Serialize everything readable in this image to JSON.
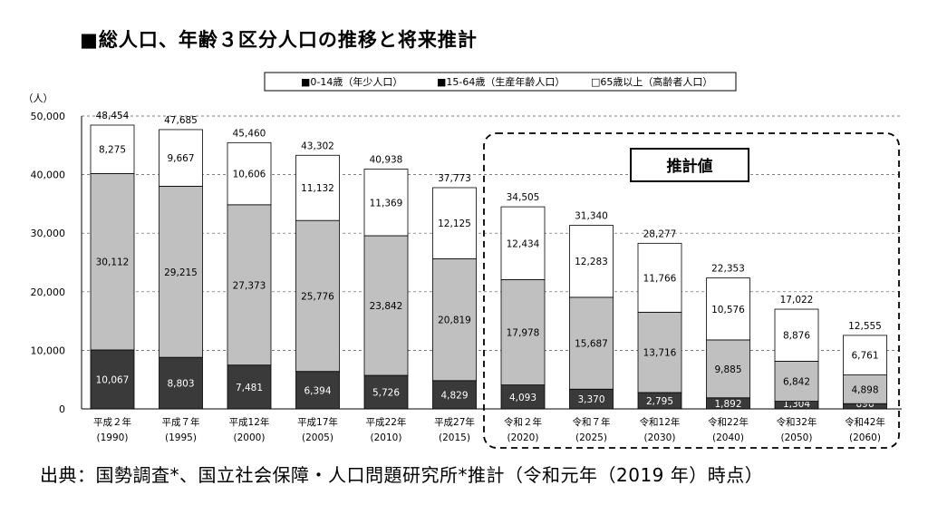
{
  "title": "■総人口、年齢３区分人口の推移と将来推計",
  "source": "出典：国勢調査*、国立社会保障・人口問題研究所*推計（令和元年（2019 年）時点）",
  "colors": {
    "young": "#3a3a3a",
    "working": "#c0c0c0",
    "elderly": "#ffffff",
    "border": "#000000"
  },
  "chart_data": {
    "type": "bar",
    "stacked": true,
    "ylabel": "（人）",
    "ylim": [
      0,
      50000
    ],
    "yticks": [
      "0",
      "10,000",
      "20,000",
      "30,000",
      "40,000",
      "50,000"
    ],
    "grid": "dashed horizontal",
    "legend": [
      "■0-14歳（年少人口）",
      "■15-64歳（生産年齢人口）",
      "□65歳以上（高齢者人口）"
    ],
    "legend_position": "top",
    "annotation": "推計値",
    "categories": [
      [
        "平成２年",
        "(1990)"
      ],
      [
        "平成７年",
        "(1995)"
      ],
      [
        "平成12年",
        "(2000)"
      ],
      [
        "平成17年",
        "(2005)"
      ],
      [
        "平成22年",
        "(2010)"
      ],
      [
        "平成27年",
        "(2015)"
      ],
      [
        "令和２年",
        "(2020)"
      ],
      [
        "令和７年",
        "(2025)"
      ],
      [
        "令和12年",
        "(2030)"
      ],
      [
        "令和22年",
        "(2040)"
      ],
      [
        "令和32年",
        "(2050)"
      ],
      [
        "令和42年",
        "(2060)"
      ]
    ],
    "series": [
      {
        "name": "0-14歳（年少人口）",
        "values": [
          10067,
          8803,
          7481,
          6394,
          5726,
          4829,
          4093,
          3370,
          2795,
          1892,
          1304,
          896
        ],
        "labels": [
          "10,067",
          "8,803",
          "7,481",
          "6,394",
          "5,726",
          "4,829",
          "4,093",
          "3,370",
          "2,795",
          "1,892",
          "1,304",
          "896"
        ]
      },
      {
        "name": "15-64歳（生産年齢人口）",
        "values": [
          30112,
          29215,
          27373,
          25776,
          23842,
          20819,
          17978,
          15687,
          13716,
          9885,
          6842,
          4898
        ],
        "labels": [
          "30,112",
          "29,215",
          "27,373",
          "25,776",
          "23,842",
          "20,819",
          "17,978",
          "15,687",
          "13,716",
          "9,885",
          "6,842",
          "4,898"
        ]
      },
      {
        "name": "65歳以上（高齢者人口）",
        "values": [
          8275,
          9667,
          10606,
          11132,
          11369,
          12125,
          12434,
          12283,
          11766,
          10576,
          8876,
          6761
        ],
        "labels": [
          "8,275",
          "9,667",
          "10,606",
          "11,132",
          "11,369",
          "12,125",
          "12,434",
          "12,283",
          "11,766",
          "10,576",
          "8,876",
          "6,761"
        ]
      }
    ],
    "totals": [
      48454,
      47685,
      45460,
      43302,
      40938,
      37773,
      34505,
      31340,
      28277,
      22353,
      17022,
      12555
    ],
    "total_labels": [
      "48,454",
      "47,685",
      "45,460",
      "43,302",
      "40,938",
      "37,773",
      "34,505",
      "31,340",
      "28,277",
      "22,353",
      "17,022",
      "12,555"
    ]
  }
}
